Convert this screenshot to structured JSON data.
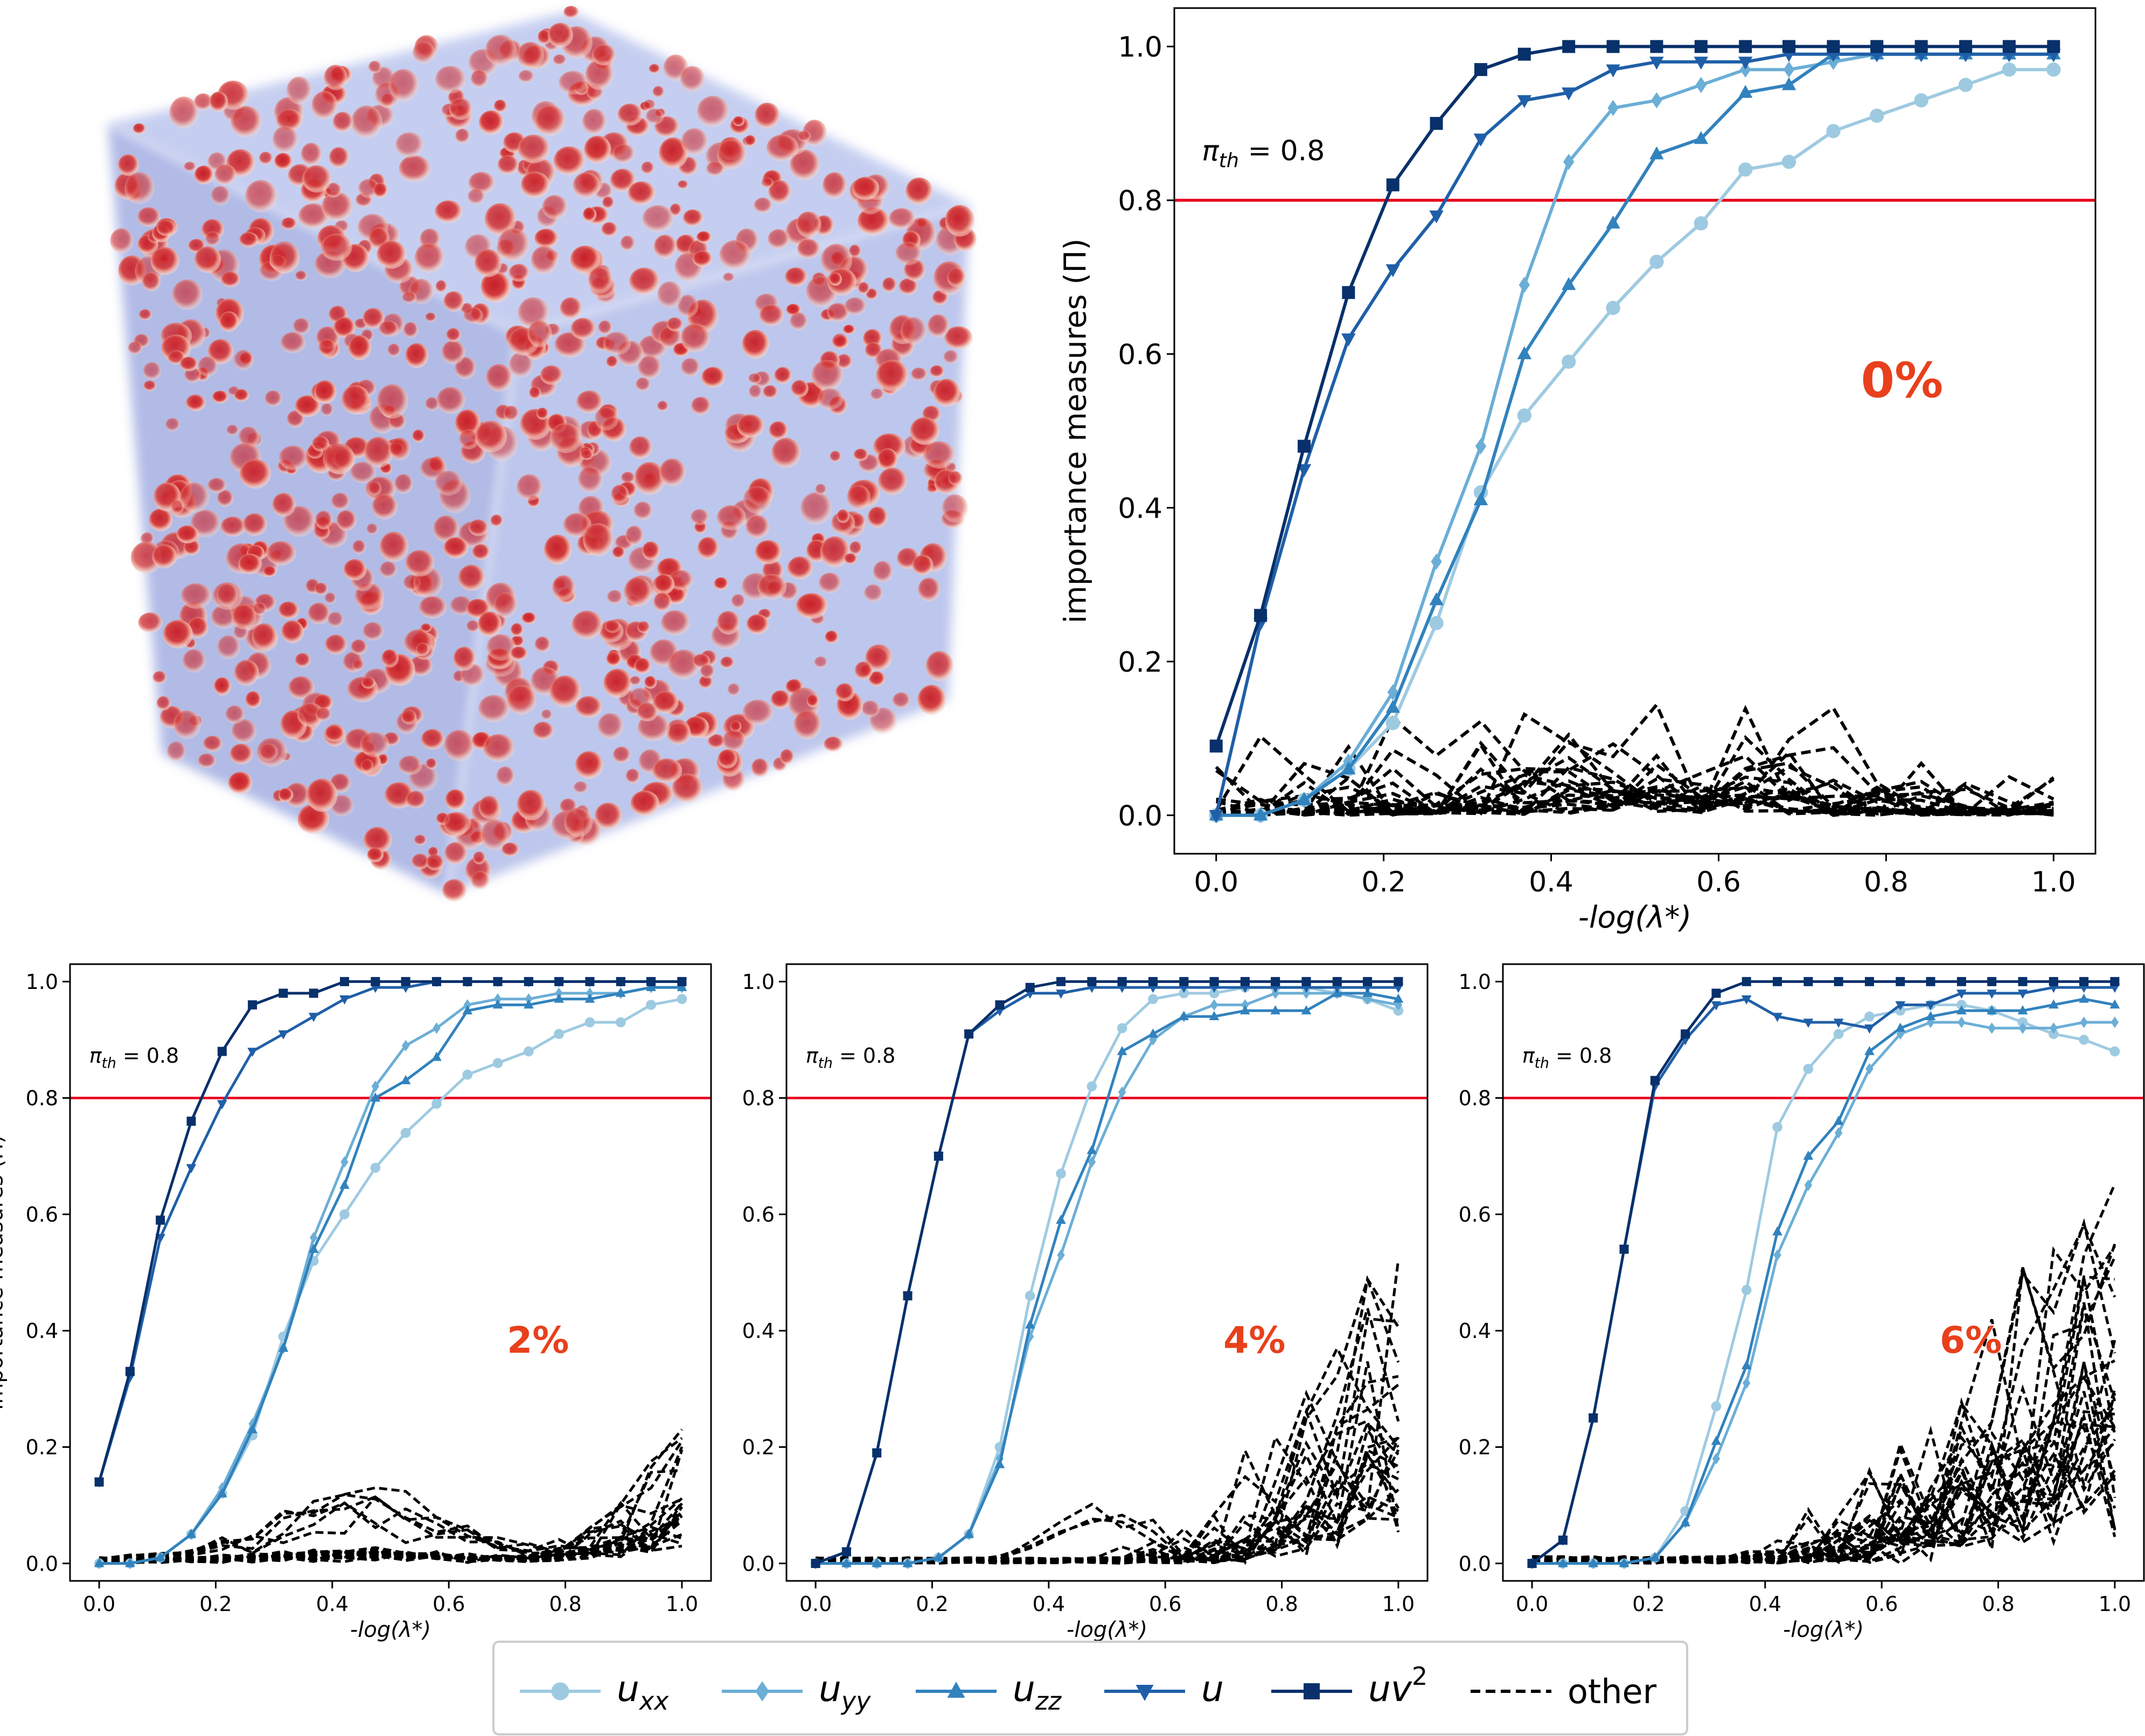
{
  "colors": {
    "u_xx": "#9ecae1",
    "u_yy": "#6baed6",
    "u_zz": "#3182bd",
    "u": "#1f5fa8",
    "uv2": "#08306b",
    "other": "#000000",
    "threshold": "#e8001c",
    "percent_label": "#e8401c",
    "sphere_red": "#c81e28",
    "sphere_mid": "#f0a596",
    "cube_blue": "#aab4e6"
  },
  "legend": {
    "u_xx": {
      "base": "u",
      "sub": "xx",
      "marker": "circle"
    },
    "u_yy": {
      "base": "u",
      "sub": "yy",
      "marker": "diamond"
    },
    "u_zz": {
      "base": "u",
      "sub": "zz",
      "marker": "triangle-up"
    },
    "u": {
      "base": "u",
      "marker": "triangle-down"
    },
    "uv2": {
      "base": "uv",
      "sup": "2",
      "marker": "square"
    },
    "other": {
      "label": "other",
      "style": "dashed"
    }
  },
  "chart_data": [
    {
      "id": "panel_0",
      "type": "line",
      "percent_label": "0%",
      "threshold": {
        "value": 0.8,
        "symbol": "π",
        "sub": "th",
        "text": " = 0.8"
      },
      "xlabel": "-log(λ*)",
      "ylabel": "importance measures (Π)",
      "xlim": [
        -0.05,
        1.05
      ],
      "ylim": [
        -0.05,
        1.05
      ],
      "xticks": [
        "0.0",
        "0.2",
        "0.4",
        "0.6",
        "0.8",
        "1.0"
      ],
      "yticks": [
        "0.0",
        "0.2",
        "0.4",
        "0.6",
        "0.8",
        "1.0"
      ],
      "x": [
        0,
        0.053,
        0.105,
        0.158,
        0.211,
        0.263,
        0.316,
        0.368,
        0.421,
        0.474,
        0.526,
        0.579,
        0.632,
        0.684,
        0.737,
        0.789,
        0.842,
        0.895,
        0.947,
        1.0
      ],
      "series": [
        {
          "key": "u_xx",
          "values": [
            0.0,
            0.0,
            0.02,
            0.06,
            0.12,
            0.25,
            0.42,
            0.52,
            0.59,
            0.66,
            0.72,
            0.77,
            0.84,
            0.85,
            0.89,
            0.91,
            0.93,
            0.95,
            0.97,
            0.97
          ]
        },
        {
          "key": "u_yy",
          "values": [
            0.0,
            0.0,
            0.02,
            0.07,
            0.16,
            0.33,
            0.48,
            0.69,
            0.85,
            0.92,
            0.93,
            0.95,
            0.97,
            0.97,
            0.98,
            0.99,
            0.99,
            0.99,
            0.99,
            0.99
          ]
        },
        {
          "key": "u_zz",
          "values": [
            0.0,
            0.0,
            0.02,
            0.06,
            0.14,
            0.28,
            0.41,
            0.6,
            0.69,
            0.77,
            0.86,
            0.88,
            0.94,
            0.95,
            0.99,
            0.99,
            0.99,
            0.99,
            0.99,
            0.99
          ]
        },
        {
          "key": "u",
          "values": [
            0.0,
            0.25,
            0.45,
            0.62,
            0.71,
            0.78,
            0.88,
            0.93,
            0.94,
            0.97,
            0.98,
            0.98,
            0.98,
            0.99,
            0.99,
            0.99,
            0.99,
            0.99,
            0.99,
            0.99
          ]
        },
        {
          "key": "uv2",
          "values": [
            0.09,
            0.26,
            0.48,
            0.68,
            0.82,
            0.9,
            0.97,
            0.99,
            1.0,
            1.0,
            1.0,
            1.0,
            1.0,
            1.0,
            1.0,
            1.0,
            1.0,
            1.0,
            1.0,
            1.0
          ]
        }
      ],
      "other_profile": "flat",
      "other_count": 20
    },
    {
      "id": "panel_2",
      "type": "line",
      "percent_label": "2%",
      "threshold": {
        "value": 0.8,
        "symbol": "π",
        "sub": "th",
        "text": " = 0.8"
      },
      "xlabel": "-log(λ*)",
      "ylabel": "importance measures (Π)",
      "xlim": [
        -0.05,
        1.05
      ],
      "ylim": [
        -0.03,
        1.03
      ],
      "xticks": [
        "0.0",
        "0.2",
        "0.4",
        "0.6",
        "0.8",
        "1.0"
      ],
      "yticks": [
        "0.0",
        "0.2",
        "0.4",
        "0.6",
        "0.8",
        "1.0"
      ],
      "x": [
        0,
        0.053,
        0.105,
        0.158,
        0.211,
        0.263,
        0.316,
        0.368,
        0.421,
        0.474,
        0.526,
        0.579,
        0.632,
        0.684,
        0.737,
        0.789,
        0.842,
        0.895,
        0.947,
        1.0
      ],
      "series": [
        {
          "key": "u_xx",
          "values": [
            0.0,
            0.0,
            0.01,
            0.05,
            0.12,
            0.22,
            0.39,
            0.52,
            0.6,
            0.68,
            0.74,
            0.79,
            0.84,
            0.86,
            0.88,
            0.91,
            0.93,
            0.93,
            0.96,
            0.97
          ]
        },
        {
          "key": "u_yy",
          "values": [
            0.0,
            0.0,
            0.01,
            0.05,
            0.13,
            0.24,
            0.37,
            0.56,
            0.69,
            0.82,
            0.89,
            0.92,
            0.96,
            0.97,
            0.97,
            0.98,
            0.98,
            0.98,
            0.99,
            0.99
          ]
        },
        {
          "key": "u_zz",
          "values": [
            0.0,
            0.0,
            0.01,
            0.05,
            0.12,
            0.23,
            0.37,
            0.54,
            0.65,
            0.8,
            0.83,
            0.87,
            0.95,
            0.96,
            0.96,
            0.97,
            0.97,
            0.98,
            0.99,
            0.99
          ]
        },
        {
          "key": "u",
          "values": [
            0.14,
            0.32,
            0.56,
            0.68,
            0.79,
            0.88,
            0.91,
            0.94,
            0.97,
            0.99,
            0.99,
            1.0,
            1.0,
            1.0,
            1.0,
            1.0,
            1.0,
            1.0,
            1.0,
            1.0
          ]
        },
        {
          "key": "uv2",
          "values": [
            0.14,
            0.33,
            0.59,
            0.76,
            0.88,
            0.96,
            0.98,
            0.98,
            1.0,
            1.0,
            1.0,
            1.0,
            1.0,
            1.0,
            1.0,
            1.0,
            1.0,
            1.0,
            1.0,
            1.0
          ]
        }
      ],
      "other_profile": "late_low",
      "other_count": 22
    },
    {
      "id": "panel_4",
      "type": "line",
      "percent_label": "4%",
      "threshold": {
        "value": 0.8,
        "symbol": "π",
        "sub": "th",
        "text": " = 0.8"
      },
      "xlabel": "-log(λ*)",
      "ylabel": "",
      "xlim": [
        -0.05,
        1.05
      ],
      "ylim": [
        -0.03,
        1.03
      ],
      "xticks": [
        "0.0",
        "0.2",
        "0.4",
        "0.6",
        "0.8",
        "1.0"
      ],
      "yticks": [
        "0.0",
        "0.2",
        "0.4",
        "0.6",
        "0.8",
        "1.0"
      ],
      "x": [
        0,
        0.053,
        0.105,
        0.158,
        0.211,
        0.263,
        0.316,
        0.368,
        0.421,
        0.474,
        0.526,
        0.579,
        0.632,
        0.684,
        0.737,
        0.789,
        0.842,
        0.895,
        0.947,
        1.0
      ],
      "series": [
        {
          "key": "u_xx",
          "values": [
            0.0,
            0.0,
            0.0,
            0.0,
            0.01,
            0.05,
            0.2,
            0.46,
            0.67,
            0.82,
            0.92,
            0.97,
            0.98,
            0.98,
            0.99,
            0.99,
            0.99,
            0.98,
            0.97,
            0.95
          ]
        },
        {
          "key": "u_yy",
          "values": [
            0.0,
            0.0,
            0.0,
            0.0,
            0.01,
            0.05,
            0.18,
            0.39,
            0.53,
            0.69,
            0.81,
            0.9,
            0.94,
            0.96,
            0.96,
            0.98,
            0.98,
            0.98,
            0.97,
            0.96
          ]
        },
        {
          "key": "u_zz",
          "values": [
            0.0,
            0.0,
            0.0,
            0.0,
            0.01,
            0.05,
            0.17,
            0.41,
            0.59,
            0.71,
            0.88,
            0.91,
            0.94,
            0.94,
            0.95,
            0.95,
            0.95,
            0.98,
            0.98,
            0.97
          ]
        },
        {
          "key": "u",
          "values": [
            0.0,
            0.02,
            0.19,
            0.46,
            0.7,
            0.91,
            0.95,
            0.98,
            0.98,
            0.99,
            0.99,
            0.99,
            0.99,
            0.99,
            0.99,
            0.99,
            0.99,
            0.99,
            0.99,
            0.99
          ]
        },
        {
          "key": "uv2",
          "values": [
            0.0,
            0.02,
            0.19,
            0.46,
            0.7,
            0.91,
            0.96,
            0.99,
            1.0,
            1.0,
            1.0,
            1.0,
            1.0,
            1.0,
            1.0,
            1.0,
            1.0,
            1.0,
            1.0,
            1.0
          ]
        }
      ],
      "other_profile": "late_mid",
      "other_count": 24
    },
    {
      "id": "panel_6",
      "type": "line",
      "percent_label": "6%",
      "threshold": {
        "value": 0.8,
        "symbol": "π",
        "sub": "th",
        "text": " = 0.8"
      },
      "xlabel": "-log(λ*)",
      "ylabel": "",
      "xlim": [
        -0.05,
        1.05
      ],
      "ylim": [
        -0.03,
        1.03
      ],
      "xticks": [
        "0.0",
        "0.2",
        "0.4",
        "0.6",
        "0.8",
        "1.0"
      ],
      "yticks": [
        "0.0",
        "0.2",
        "0.4",
        "0.6",
        "0.8",
        "1.0"
      ],
      "x": [
        0,
        0.053,
        0.105,
        0.158,
        0.211,
        0.263,
        0.316,
        0.368,
        0.421,
        0.474,
        0.526,
        0.579,
        0.632,
        0.684,
        0.737,
        0.789,
        0.842,
        0.895,
        0.947,
        1.0
      ],
      "series": [
        {
          "key": "u_xx",
          "values": [
            0.0,
            0.0,
            0.0,
            0.0,
            0.01,
            0.09,
            0.27,
            0.47,
            0.75,
            0.85,
            0.91,
            0.94,
            0.95,
            0.96,
            0.96,
            0.95,
            0.93,
            0.91,
            0.9,
            0.88
          ]
        },
        {
          "key": "u_yy",
          "values": [
            0.0,
            0.0,
            0.0,
            0.0,
            0.01,
            0.07,
            0.18,
            0.31,
            0.53,
            0.65,
            0.74,
            0.85,
            0.91,
            0.93,
            0.93,
            0.92,
            0.92,
            0.92,
            0.93,
            0.93
          ]
        },
        {
          "key": "u_zz",
          "values": [
            0.0,
            0.0,
            0.0,
            0.0,
            0.01,
            0.07,
            0.21,
            0.34,
            0.57,
            0.7,
            0.76,
            0.88,
            0.92,
            0.94,
            0.95,
            0.95,
            0.95,
            0.96,
            0.97,
            0.96
          ]
        },
        {
          "key": "u",
          "values": [
            0.0,
            0.04,
            0.25,
            0.54,
            0.82,
            0.9,
            0.96,
            0.97,
            0.94,
            0.93,
            0.93,
            0.92,
            0.96,
            0.96,
            0.98,
            0.98,
            0.98,
            0.99,
            0.99,
            0.99
          ]
        },
        {
          "key": "uv2",
          "values": [
            0.0,
            0.04,
            0.25,
            0.54,
            0.83,
            0.91,
            0.98,
            1.0,
            1.0,
            1.0,
            1.0,
            1.0,
            1.0,
            1.0,
            1.0,
            1.0,
            1.0,
            1.0,
            1.0,
            1.0
          ]
        }
      ],
      "other_profile": "late_high",
      "other_count": 28
    }
  ]
}
